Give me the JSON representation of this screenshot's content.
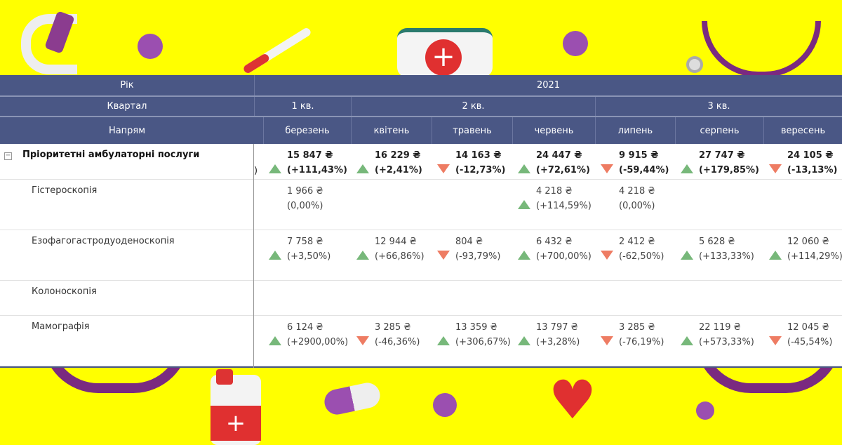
{
  "header": {
    "year_label": "Рік",
    "year": "2021",
    "quarter_label": "Квартал",
    "quarters": [
      "1 кв.",
      "2 кв.",
      "3 кв."
    ],
    "direction_label": "Напрям",
    "months": [
      "березень",
      "квітень",
      "травень",
      "червень",
      "липень",
      "серпень",
      "вересень"
    ]
  },
  "rows": [
    {
      "label": "Пріоритетні амбулаторні послуги",
      "bold": true,
      "expander": "−",
      "partial": ")",
      "cells": [
        {
          "value": "15 847 ₴",
          "change": "(+111,43%)",
          "trend": "up"
        },
        {
          "value": "16 229 ₴",
          "change": "(+2,41%)",
          "trend": "up"
        },
        {
          "value": "14 163 ₴",
          "change": "(-12,73%)",
          "trend": "down"
        },
        {
          "value": "24 447 ₴",
          "change": "(+72,61%)",
          "trend": "up"
        },
        {
          "value": "9 915 ₴",
          "change": "(-59,44%)",
          "trend": "down"
        },
        {
          "value": "27 747 ₴",
          "change": "(+179,85%)",
          "trend": "up"
        },
        {
          "value": "24 105 ₴",
          "change": "(-13,13%)",
          "trend": "down"
        }
      ]
    },
    {
      "label": "Гістероскопія",
      "cells": [
        {
          "value": "1 966 ₴",
          "change": "(0,00%)",
          "trend": ""
        },
        null,
        null,
        {
          "value": "4 218 ₴",
          "change": "(+114,59%)",
          "trend": "up"
        },
        {
          "value": "4 218 ₴",
          "change": "(0,00%)",
          "trend": ""
        },
        null,
        null
      ]
    },
    {
      "label": "Езофагогастродуоденоскопія",
      "cells": [
        {
          "value": "7 758 ₴",
          "change": "(+3,50%)",
          "trend": "up"
        },
        {
          "value": "12 944 ₴",
          "change": "(+66,86%)",
          "trend": "up"
        },
        {
          "value": "804 ₴",
          "change": "(-93,79%)",
          "trend": "down"
        },
        {
          "value": "6 432 ₴",
          "change": "(+700,00%)",
          "trend": "up"
        },
        {
          "value": "2 412 ₴",
          "change": "(-62,50%)",
          "trend": "down"
        },
        {
          "value": "5 628 ₴",
          "change": "(+133,33%)",
          "trend": "up"
        },
        {
          "value": "12 060 ₴",
          "change": "(+114,29%)",
          "trend": "up"
        }
      ]
    },
    {
      "label": "Колоноскопія",
      "cells": [
        null,
        null,
        null,
        null,
        null,
        null,
        null
      ]
    },
    {
      "label": "Мамографія",
      "cells": [
        {
          "value": "6 124 ₴",
          "change": "(+2900,00%)",
          "trend": "up"
        },
        {
          "value": "3 285 ₴",
          "change": "(-46,36%)",
          "trend": "down"
        },
        {
          "value": "13 359 ₴",
          "change": "(+306,67%)",
          "trend": "up"
        },
        {
          "value": "13 797 ₴",
          "change": "(+3,28%)",
          "trend": "up"
        },
        {
          "value": "3 285 ₴",
          "change": "(-76,19%)",
          "trend": "down"
        },
        {
          "value": "22 119 ₴",
          "change": "(+573,33%)",
          "trend": "up"
        },
        {
          "value": "12 045 ₴",
          "change": "(-45,54%)",
          "trend": "down"
        }
      ]
    }
  ],
  "colors": {
    "header": "#4a5785",
    "up": "#77b87a",
    "down": "#ee7c63",
    "background": "#ffff00"
  }
}
